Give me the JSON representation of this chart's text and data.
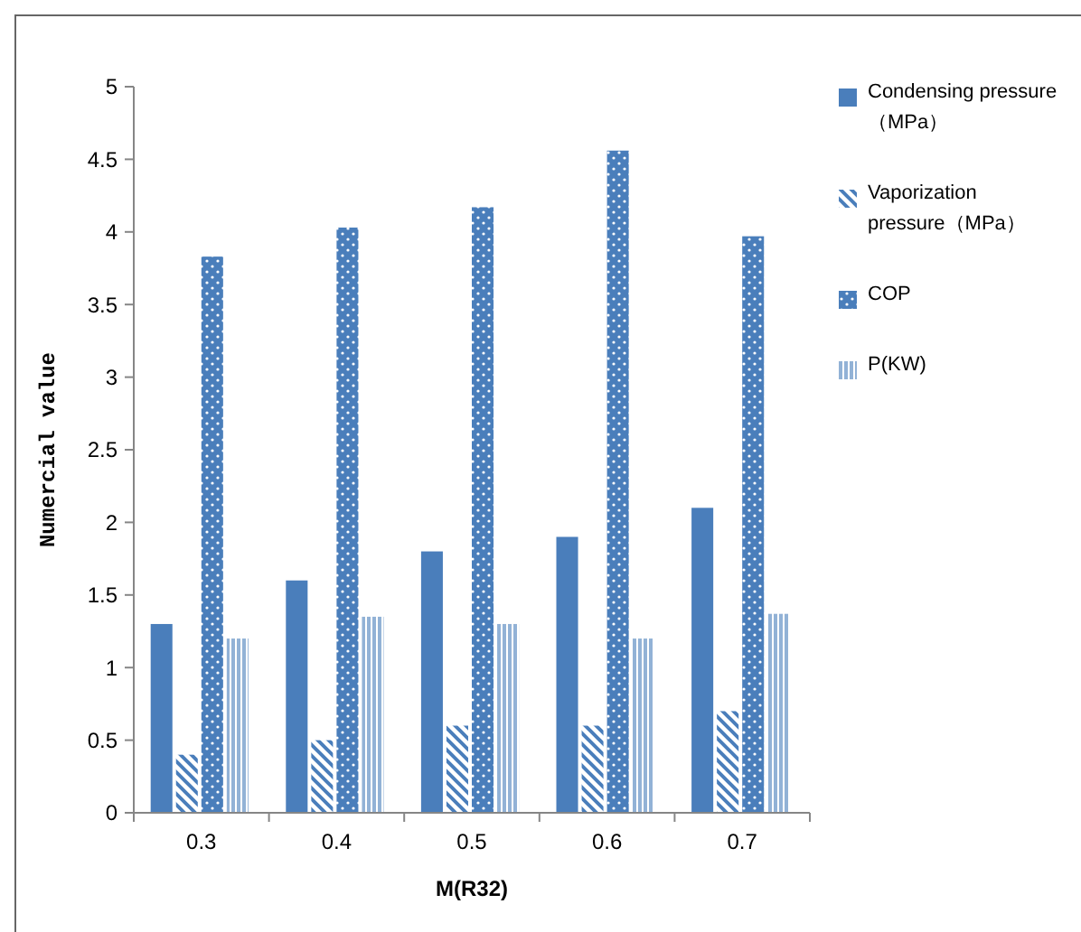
{
  "chart_data": {
    "type": "bar",
    "xlabel": "M(R32)",
    "ylabel": "Numercial value",
    "categories": [
      "0.3",
      "0.4",
      "0.5",
      "0.6",
      "0.7"
    ],
    "series": [
      {
        "name": "Condensing pressure（MPa）",
        "color": "#4a7ebb",
        "values": [
          1.3,
          1.6,
          1.8,
          1.9,
          2.1
        ]
      },
      {
        "name": "Vaporization pressure（MPa）",
        "color": "#4a7ebb",
        "values": [
          0.4,
          0.5,
          0.6,
          0.6,
          0.7
        ]
      },
      {
        "name": "COP",
        "color": "#4a7ebb",
        "values": [
          3.83,
          4.03,
          4.17,
          4.56,
          3.97
        ]
      },
      {
        "name": "P(KW)",
        "color": "#4a7ebb",
        "values": [
          1.2,
          1.35,
          1.3,
          1.2,
          1.37
        ]
      }
    ],
    "ylim": [
      0,
      5
    ],
    "yticks": [
      0,
      0.5,
      1,
      1.5,
      2,
      2.5,
      3,
      3.5,
      4,
      4.5,
      5
    ],
    "grid": false,
    "legend": "right"
  }
}
